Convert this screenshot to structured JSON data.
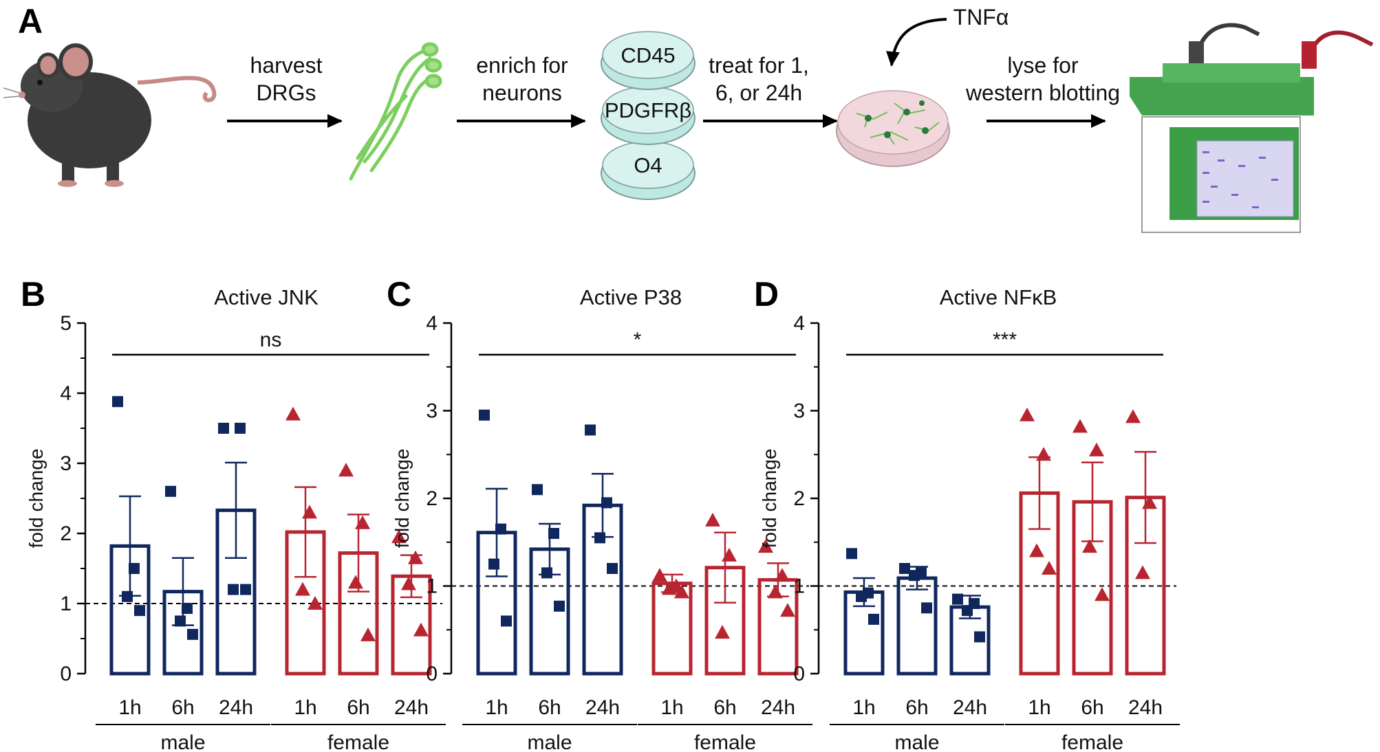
{
  "panel_a": {
    "letter": "A",
    "steps": [
      {
        "line1": "harvest",
        "line2": "DRGs"
      },
      {
        "line1": "enrich for",
        "line2": "neurons"
      },
      {
        "line1": "treat for 1,",
        "line2": "6, or 24h"
      },
      {
        "line1": "lyse for",
        "line2": "western blotting"
      }
    ],
    "dishes": [
      "CD45",
      "PDGFRβ",
      "O4"
    ],
    "stimulus": "TNFα"
  },
  "colors": {
    "male": "#10275e",
    "female": "#b82530",
    "axis": "#000000"
  },
  "chart_data": [
    {
      "letter": "B",
      "type": "bar",
      "title": "Active JNK",
      "ylabel": "fold change",
      "ylim": [
        0,
        5
      ],
      "yticks": [
        "0",
        "1",
        "2",
        "3",
        "4",
        "5"
      ],
      "reference_line": 1,
      "significance": "ns",
      "groups": [
        "male",
        "female"
      ],
      "categories": [
        "1h",
        "6h",
        "24h",
        "1h",
        "6h",
        "24h"
      ],
      "series": [
        {
          "group": "male",
          "label": "1h",
          "mean": 1.82,
          "sem": 0.71,
          "points": [
            3.88,
            1.5,
            1.1,
            0.9
          ]
        },
        {
          "group": "male",
          "label": "6h",
          "mean": 1.17,
          "sem": 0.48,
          "points": [
            2.6,
            0.93,
            0.75,
            0.56
          ]
        },
        {
          "group": "male",
          "label": "24h",
          "mean": 2.33,
          "sem": 0.68,
          "points": [
            3.5,
            3.5,
            1.2,
            1.2
          ]
        },
        {
          "group": "female",
          "label": "1h",
          "mean": 2.02,
          "sem": 0.64,
          "points": [
            3.7,
            2.3,
            1.2,
            1.0
          ]
        },
        {
          "group": "female",
          "label": "6h",
          "mean": 1.72,
          "sem": 0.55,
          "points": [
            2.9,
            2.15,
            1.3,
            0.55
          ]
        },
        {
          "group": "female",
          "label": "24h",
          "mean": 1.39,
          "sem": 0.3,
          "points": [
            1.95,
            1.65,
            1.28,
            0.62
          ]
        }
      ]
    },
    {
      "letter": "C",
      "type": "bar",
      "title": "Active P38",
      "ylabel": "fold change",
      "ylim": [
        0,
        4
      ],
      "yticks": [
        "0",
        "1",
        "2",
        "3",
        "4"
      ],
      "reference_line": 1,
      "significance": "*",
      "groups": [
        "male",
        "female"
      ],
      "categories": [
        "1h",
        "6h",
        "24h",
        "1h",
        "6h",
        "24h"
      ],
      "series": [
        {
          "group": "male",
          "label": "1h",
          "mean": 1.61,
          "sem": 0.5,
          "points": [
            2.95,
            1.65,
            1.25,
            0.6
          ]
        },
        {
          "group": "male",
          "label": "6h",
          "mean": 1.42,
          "sem": 0.29,
          "points": [
            2.1,
            1.6,
            1.15,
            0.77
          ]
        },
        {
          "group": "male",
          "label": "24h",
          "mean": 1.92,
          "sem": 0.36,
          "points": [
            2.78,
            1.95,
            1.55,
            1.2
          ]
        },
        {
          "group": "female",
          "label": "1h",
          "mean": 1.03,
          "sem": 0.1,
          "points": [
            1.12,
            1.0,
            0.97,
            0.93
          ]
        },
        {
          "group": "female",
          "label": "6h",
          "mean": 1.21,
          "sem": 0.4,
          "points": [
            1.75,
            1.35,
            0.47
          ]
        },
        {
          "group": "female",
          "label": "24h",
          "mean": 1.07,
          "sem": 0.19,
          "points": [
            1.45,
            1.12,
            0.93,
            0.72
          ]
        }
      ]
    },
    {
      "letter": "D",
      "type": "bar",
      "title": "Active NFκB",
      "ylabel": "fold change",
      "ylim": [
        0,
        4
      ],
      "yticks": [
        "0",
        "1",
        "2",
        "3",
        "4"
      ],
      "reference_line": 1,
      "significance": "***",
      "groups": [
        "male",
        "female"
      ],
      "categories": [
        "1h",
        "6h",
        "24h",
        "1h",
        "6h",
        "24h"
      ],
      "series": [
        {
          "group": "male",
          "label": "1h",
          "mean": 0.93,
          "sem": 0.16,
          "points": [
            1.37,
            0.92,
            0.88,
            0.62
          ]
        },
        {
          "group": "male",
          "label": "6h",
          "mean": 1.09,
          "sem": 0.13,
          "points": [
            1.2,
            1.15,
            1.12,
            0.75
          ]
        },
        {
          "group": "male",
          "label": "24h",
          "mean": 0.76,
          "sem": 0.13,
          "points": [
            0.85,
            0.8,
            0.72,
            0.42
          ]
        },
        {
          "group": "female",
          "label": "1h",
          "mean": 2.06,
          "sem": 0.41,
          "points": [
            2.95,
            2.5,
            1.4,
            1.2
          ]
        },
        {
          "group": "female",
          "label": "6h",
          "mean": 1.96,
          "sem": 0.45,
          "points": [
            2.82,
            2.55,
            1.45,
            0.9
          ]
        },
        {
          "group": "female",
          "label": "24h",
          "mean": 2.01,
          "sem": 0.52,
          "points": [
            2.93,
            1.95,
            1.15
          ]
        }
      ]
    }
  ]
}
